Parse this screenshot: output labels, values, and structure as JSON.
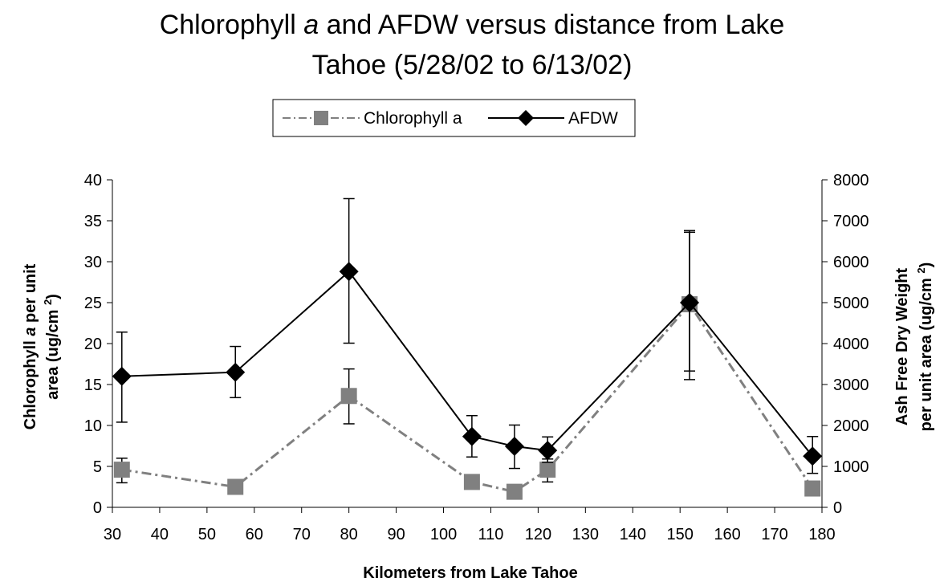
{
  "chart_data": {
    "type": "line",
    "title": {
      "line1_pre": "Chlorophyll ",
      "line1_italic": "a",
      "line1_post": " and AFDW versus distance from Lake",
      "line2": "Tahoe (5/28/02 to 6/13/02)"
    },
    "xlabel": "Kilometers from Lake Tahoe",
    "ylabel_left": {
      "line1_pre": "Chlorophyll ",
      "line1_italic": "a",
      "line1_post": " per unit",
      "line2_pre": "area (ug/cm ",
      "line2_sup": "2",
      "line2_post": ")"
    },
    "ylabel_right": {
      "line1": "Ash Free Dry Weight",
      "line2_pre": "per unit area (ug/cm ",
      "line2_sup": "2",
      "line2_post": ")"
    },
    "xlim": [
      30,
      180
    ],
    "ylim_left": [
      0,
      40
    ],
    "ylim_right": [
      0,
      8000
    ],
    "x_ticks": [
      "30",
      "40",
      "50",
      "60",
      "70",
      "80",
      "90",
      "100",
      "110",
      "120",
      "130",
      "140",
      "150",
      "160",
      "170",
      "180"
    ],
    "y_left_ticks": [
      "0",
      "5",
      "10",
      "15",
      "20",
      "25",
      "30",
      "35",
      "40"
    ],
    "y_right_ticks": [
      "0",
      "1000",
      "2000",
      "3000",
      "4000",
      "5000",
      "6000",
      "7000",
      "8000"
    ],
    "legend_position": "top-center",
    "series": [
      {
        "name": "Chlorophyll a",
        "axis": "left",
        "color": "#808080",
        "marker": "square",
        "line_style": "dash-dot",
        "points": [
          {
            "x": 32,
            "y": 4.6,
            "err_low": 3.0,
            "err_high": 6.0
          },
          {
            "x": 56,
            "y": 2.5
          },
          {
            "x": 80,
            "y": 13.6,
            "err_low": 10.2,
            "err_high": 16.9
          },
          {
            "x": 106,
            "y": 3.1
          },
          {
            "x": 115,
            "y": 1.9
          },
          {
            "x": 122,
            "y": 4.6,
            "err_low": 3.1,
            "err_high": 5.9
          },
          {
            "x": 152,
            "y": 24.8,
            "err_low": 15.6,
            "err_high": 33.6
          },
          {
            "x": 178,
            "y": 2.3
          }
        ]
      },
      {
        "name": "AFDW",
        "axis": "right",
        "color": "#000000",
        "marker": "diamond",
        "line_style": "solid",
        "points": [
          {
            "x": 32,
            "y": 3200,
            "err_low": 2080,
            "err_high": 4280
          },
          {
            "x": 56,
            "y": 3300,
            "err_low": 2680,
            "err_high": 3930
          },
          {
            "x": 80,
            "y": 5760,
            "err_low": 4010,
            "err_high": 7540
          },
          {
            "x": 106,
            "y": 1730,
            "err_low": 1230,
            "err_high": 2240
          },
          {
            "x": 115,
            "y": 1490,
            "err_low": 950,
            "err_high": 2010
          },
          {
            "x": 122,
            "y": 1390,
            "err_low": 1100,
            "err_high": 1720
          },
          {
            "x": 152,
            "y": 5000,
            "err_low": 3330,
            "err_high": 6760
          },
          {
            "x": 178,
            "y": 1250,
            "err_low": 830,
            "err_high": 1730
          }
        ]
      }
    ]
  }
}
